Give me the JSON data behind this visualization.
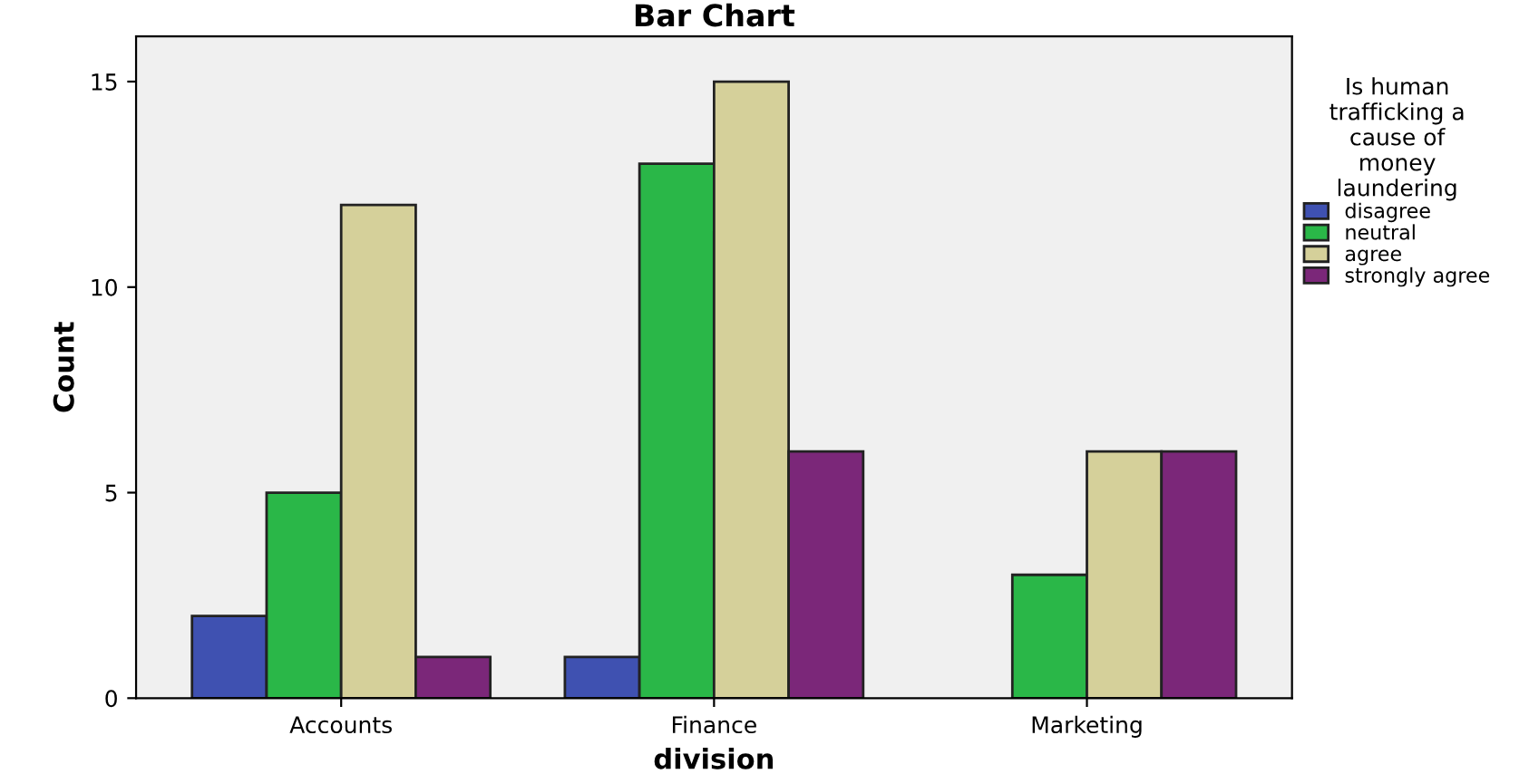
{
  "chart_data": {
    "type": "bar",
    "title": "Bar Chart",
    "xlabel": "division",
    "ylabel": "Count",
    "legend_title": "Is human\ntrafficking a\ncause of\nmoney\nlaundering",
    "categories": [
      "Accounts",
      "Finance",
      "Marketing"
    ],
    "series": [
      {
        "name": "disagree",
        "color": "#3f51b1",
        "values": [
          2,
          1,
          null
        ]
      },
      {
        "name": "neutral",
        "color": "#2ab748",
        "values": [
          5,
          13,
          3
        ]
      },
      {
        "name": "agree",
        "color": "#d5d09a",
        "values": [
          12,
          15,
          6
        ]
      },
      {
        "name": "strongly agree",
        "color": "#7b2779",
        "values": [
          1,
          6,
          6
        ]
      }
    ],
    "ylim": [
      0,
      16.1
    ],
    "yticks": [
      0,
      5,
      10,
      15
    ],
    "grid": false,
    "legend": "right"
  }
}
